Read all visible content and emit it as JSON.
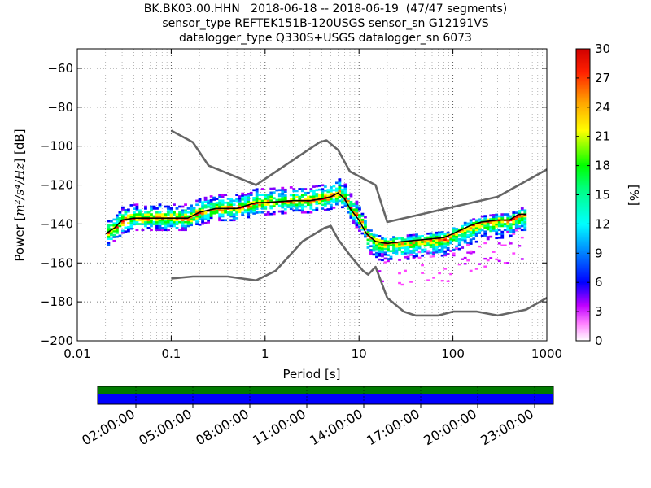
{
  "titles": {
    "line1": "BK.BK03.00.HHN   2018-06-18 -- 2018-06-19  (47/47 segments)",
    "line2": "sensor_type REFTEK151B-120USGS sensor_sn G12191VS",
    "line3": "datalogger_type Q330S+USGS datalogger_sn 6073"
  },
  "colors": {
    "noise_model": "#666666",
    "mode_line": "#000000",
    "coverage_green": "#007a00",
    "coverage_blue": "#0000ff"
  },
  "chart_data": [
    {
      "type": "heatmap",
      "subtype": "probabilistic power spectral density",
      "xlabel": "Period [s]",
      "ylabel_prefix": "Power [",
      "ylabel_units": "m²/s⁴/Hz",
      "ylabel_suffix": "] [dB]",
      "x_scale": "log",
      "xlim": [
        0.01,
        1000
      ],
      "ylim": [
        -200,
        -50
      ],
      "x_ticks": [
        {
          "value": 0.01,
          "label": "0.01"
        },
        {
          "value": 0.1,
          "label": "0.1"
        },
        {
          "value": 1,
          "label": "1"
        },
        {
          "value": 10,
          "label": "10"
        },
        {
          "value": 100,
          "label": "100"
        },
        {
          "value": 1000,
          "label": "1000"
        }
      ],
      "y_ticks": [
        {
          "value": -60,
          "label": "−60"
        },
        {
          "value": -80,
          "label": "−80"
        },
        {
          "value": -100,
          "label": "−100"
        },
        {
          "value": -120,
          "label": "−120"
        },
        {
          "value": -140,
          "label": "−140"
        },
        {
          "value": -160,
          "label": "−160"
        },
        {
          "value": -180,
          "label": "−180"
        },
        {
          "value": -200,
          "label": "−200"
        }
      ],
      "grid": true,
      "colorbar": {
        "label": "[%]",
        "range": [
          0,
          30
        ],
        "ticks": [
          {
            "value": 0,
            "label": "0"
          },
          {
            "value": 3,
            "label": "3"
          },
          {
            "value": 6,
            "label": "6"
          },
          {
            "value": 9,
            "label": "9"
          },
          {
            "value": 12,
            "label": "12"
          },
          {
            "value": 15,
            "label": "15"
          },
          {
            "value": 18,
            "label": "18"
          },
          {
            "value": 21,
            "label": "21"
          },
          {
            "value": 24,
            "label": "24"
          },
          {
            "value": 27,
            "label": "27"
          },
          {
            "value": 30,
            "label": "30"
          }
        ]
      },
      "series": [
        {
          "role": "new-high-noise-model",
          "color": "#666666",
          "points": [
            [
              0.1,
              -92
            ],
            [
              0.17,
              -98
            ],
            [
              0.25,
              -110
            ],
            [
              0.8,
              -120
            ],
            [
              3.8,
              -98
            ],
            [
              4.5,
              -97
            ],
            [
              6,
              -102
            ],
            [
              7,
              -108
            ],
            [
              8,
              -113
            ],
            [
              15,
              -120
            ],
            [
              20,
              -139
            ],
            [
              300,
              -126
            ],
            [
              1000,
              -112
            ]
          ]
        },
        {
          "role": "new-low-noise-model",
          "color": "#666666",
          "points": [
            [
              0.1,
              -168
            ],
            [
              0.17,
              -167
            ],
            [
              0.4,
              -167
            ],
            [
              0.8,
              -169
            ],
            [
              1.3,
              -164
            ],
            [
              2.5,
              -149
            ],
            [
              4.3,
              -142
            ],
            [
              5,
              -141
            ],
            [
              6,
              -148
            ],
            [
              8,
              -156
            ],
            [
              11,
              -164
            ],
            [
              12.5,
              -166
            ],
            [
              15,
              -162
            ],
            [
              20,
              -178
            ],
            [
              30,
              -185
            ],
            [
              40,
              -187
            ],
            [
              70,
              -187
            ],
            [
              100,
              -185
            ],
            [
              180,
              -185
            ],
            [
              300,
              -187
            ],
            [
              600,
              -184
            ],
            [
              1000,
              -178
            ]
          ]
        },
        {
          "role": "mode",
          "color": "#000000",
          "points": [
            [
              0.02,
              -145
            ],
            [
              0.025,
              -142
            ],
            [
              0.03,
              -138
            ],
            [
              0.04,
              -137
            ],
            [
              0.06,
              -137
            ],
            [
              0.1,
              -137
            ],
            [
              0.15,
              -137
            ],
            [
              0.2,
              -134
            ],
            [
              0.3,
              -132
            ],
            [
              0.5,
              -132
            ],
            [
              0.8,
              -129
            ],
            [
              1,
              -129
            ],
            [
              2,
              -128
            ],
            [
              3,
              -128
            ],
            [
              4,
              -127
            ],
            [
              5,
              -126
            ],
            [
              6,
              -124
            ],
            [
              7,
              -127
            ],
            [
              8,
              -132
            ],
            [
              10,
              -138
            ],
            [
              12,
              -145
            ],
            [
              15,
              -149
            ],
            [
              20,
              -150
            ],
            [
              30,
              -149
            ],
            [
              50,
              -148
            ],
            [
              80,
              -147
            ],
            [
              100,
              -145
            ],
            [
              150,
              -141
            ],
            [
              200,
              -139
            ],
            [
              300,
              -138
            ],
            [
              400,
              -138
            ],
            [
              500,
              -135
            ],
            [
              600,
              -135
            ]
          ]
        }
      ]
    },
    {
      "type": "timeline",
      "subtype": "data coverage bar",
      "tick_labels": [
        "02:00:00",
        "05:00:00",
        "08:00:00",
        "11:00:00",
        "14:00:00",
        "17:00:00",
        "20:00:00",
        "23:00:00"
      ]
    }
  ]
}
